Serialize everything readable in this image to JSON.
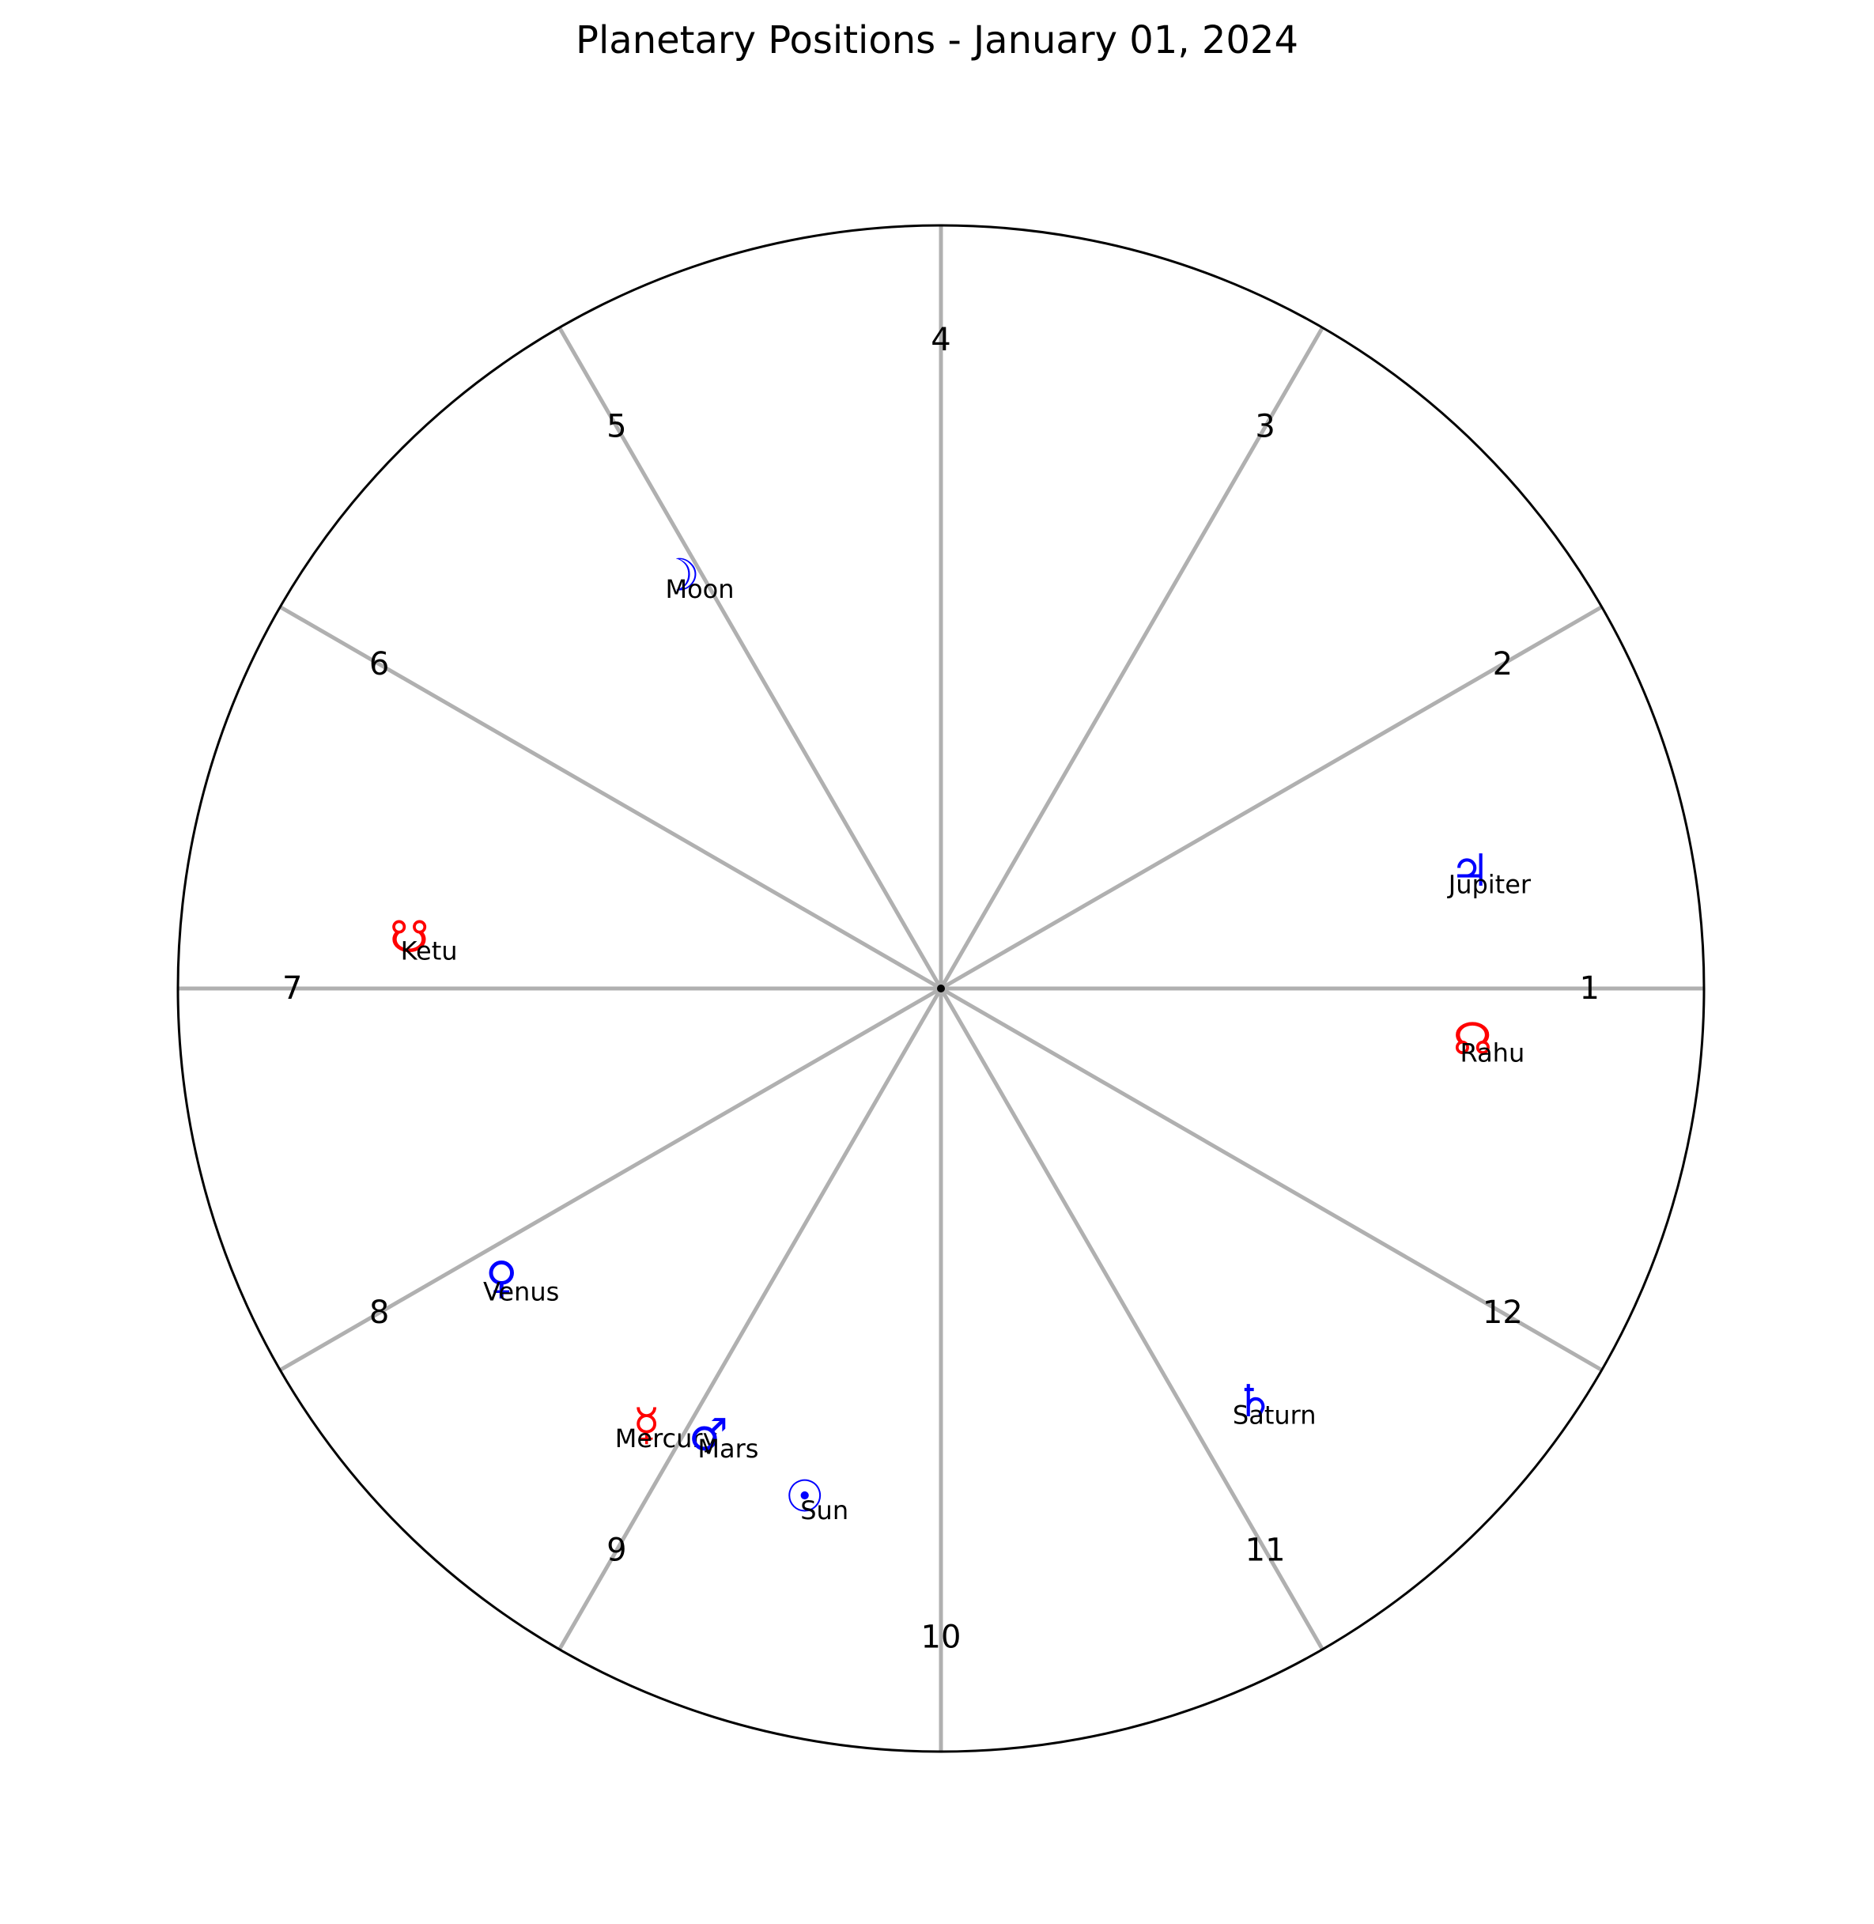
{
  "chart_data": {
    "type": "polar-scatter",
    "title": "Planetary Positions - January 01, 2024",
    "houses": [
      "1",
      "2",
      "3",
      "4",
      "5",
      "6",
      "7",
      "8",
      "9",
      "10",
      "11",
      "12"
    ],
    "house_start_angles_deg": [
      0,
      30,
      60,
      90,
      120,
      150,
      180,
      210,
      240,
      270,
      300,
      330
    ],
    "radius_range": [
      0,
      1
    ],
    "grid": true,
    "planets": [
      {
        "name": "Jupiter",
        "symbol": "♃",
        "color": "#0000ff",
        "angle_deg": 12.5,
        "radius": 0.71
      },
      {
        "name": "Rahu",
        "symbol": "☊",
        "color": "#ff0000",
        "angle_deg": -5.5,
        "radius": 0.7
      },
      {
        "name": "Moon",
        "symbol": "☽",
        "color": "#0000ff",
        "angle_deg": 122.3,
        "radius": 0.64
      },
      {
        "name": "Ketu",
        "symbol": "☋",
        "color": "#ff0000",
        "angle_deg": 174.5,
        "radius": 0.7
      },
      {
        "name": "Venus",
        "symbol": "♀",
        "color": "#0000ff",
        "angle_deg": 213.4,
        "radius": 0.69
      },
      {
        "name": "Mercury",
        "symbol": "☿",
        "color": "#ff0000",
        "angle_deg": 236.0,
        "radius": 0.69
      },
      {
        "name": "Mars",
        "symbol": "♂",
        "color": "#0000ff",
        "angle_deg": 242.5,
        "radius": 0.66
      },
      {
        "name": "Sun",
        "symbol": "☉",
        "color": "#0000ff",
        "angle_deg": 255.0,
        "radius": 0.69
      },
      {
        "name": "Saturn",
        "symbol": "♄",
        "color": "#0000ff",
        "angle_deg": 307.2,
        "radius": 0.68
      }
    ]
  }
}
